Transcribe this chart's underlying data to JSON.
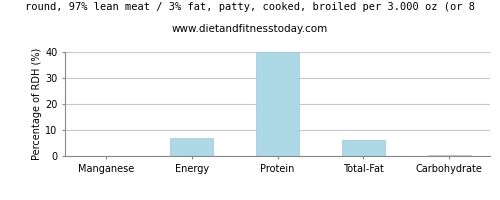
{
  "title": "round, 97% lean meat / 3% fat, patty, cooked, broiled per 3.000 oz (or 8",
  "subtitle": "www.dietandfitnesstoday.com",
  "categories": [
    "Manganese",
    "Energy",
    "Protein",
    "Total-Fat",
    "Carbohydrate"
  ],
  "values": [
    0,
    7,
    40,
    6.2,
    0.5
  ],
  "bar_color": "#add8e6",
  "ylabel": "Percentage of RDH (%)",
  "ylim": [
    0,
    40
  ],
  "yticks": [
    0,
    10,
    20,
    30,
    40
  ],
  "background_color": "#ffffff",
  "grid_color": "#c8c8c8",
  "title_fontsize": 7.5,
  "subtitle_fontsize": 7.5,
  "tick_fontsize": 7,
  "ylabel_fontsize": 7
}
